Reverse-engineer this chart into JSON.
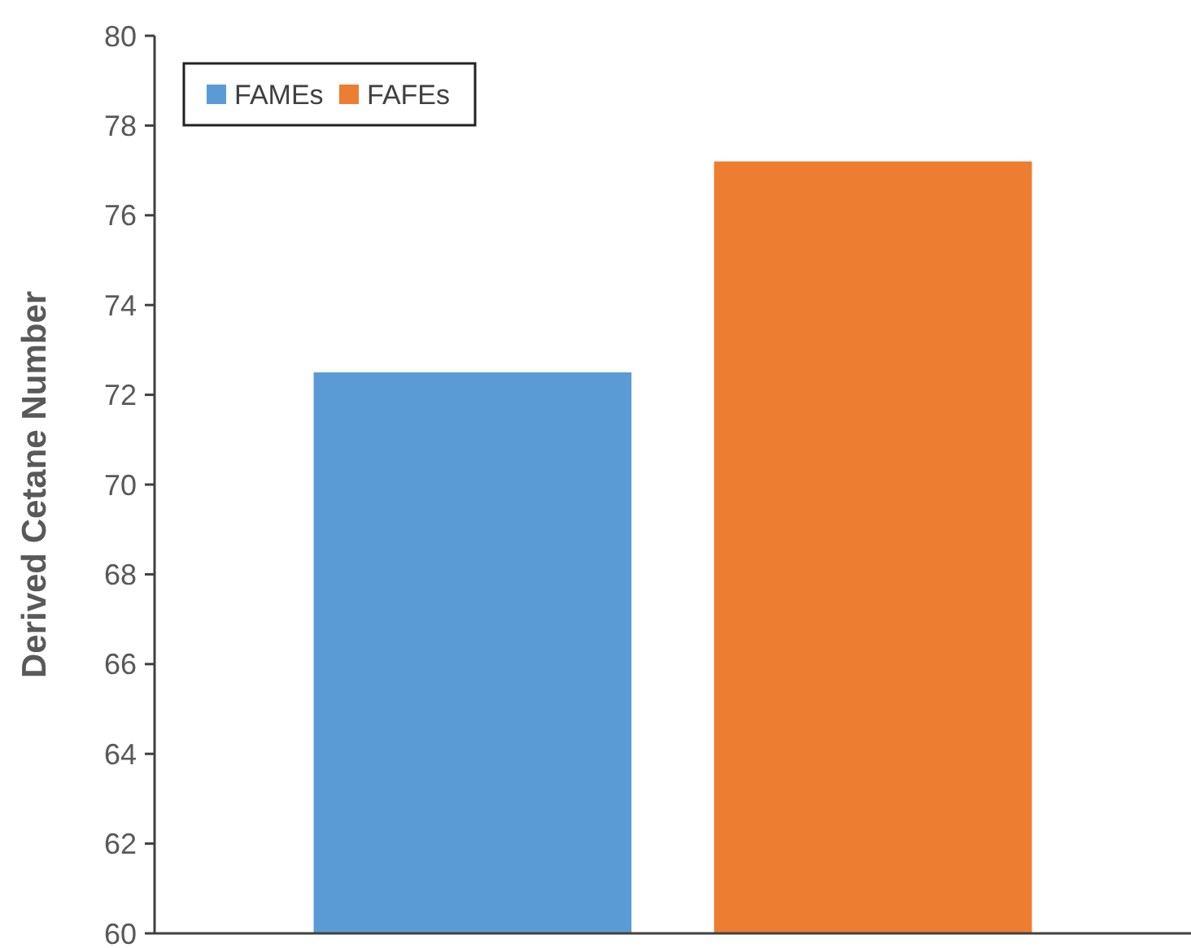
{
  "chart_data": {
    "type": "bar",
    "ylabel": "Derived Cetane Number",
    "categories": [
      null
    ],
    "series": [
      {
        "name": "FAMEs",
        "color": "#5b9bd5",
        "values": [
          72.5
        ]
      },
      {
        "name": "FAFEs",
        "color": "#ed7d31",
        "values": [
          77.2
        ]
      }
    ],
    "ylim": [
      60,
      80
    ],
    "yticks": [
      60,
      62,
      64,
      66,
      68,
      70,
      72,
      74,
      76,
      78,
      80
    ],
    "legend": "top left",
    "grid": false
  }
}
